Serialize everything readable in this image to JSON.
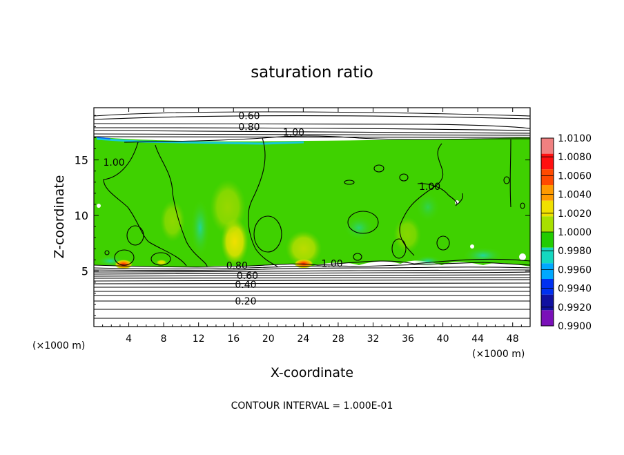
{
  "chart_data": {
    "type": "heatmap",
    "title": "saturation ratio",
    "xlabel": "X-coordinate",
    "ylabel": "Z-coordinate",
    "x_unit_left": "(×1000 m)",
    "x_unit_right": "(×1000 m)",
    "xlim": [
      0,
      50
    ],
    "ylim": [
      0,
      19.7
    ],
    "x_ticks": [
      4,
      8,
      12,
      16,
      20,
      24,
      28,
      32,
      36,
      40,
      44,
      48
    ],
    "y_ticks": [
      5,
      10,
      15
    ],
    "contour_interval_text": "CONTOUR INTERVAL = 1.000E-01",
    "colorbar": {
      "labels": [
        "1.0100",
        "1.0080",
        "1.0060",
        "1.0040",
        "1.0020",
        "1.0000",
        "0.9980",
        "0.9960",
        "0.9940",
        "0.9920",
        "0.9900"
      ],
      "colors": [
        "#f08080",
        "#ff1010",
        "#ff4a00",
        "#ff9a00",
        "#f0e000",
        "#a8e000",
        "#22cc00",
        "#14d8c0",
        "#00a8ff",
        "#0030f0",
        "#1010a0",
        "#7a10b8"
      ]
    },
    "contour_labels": [
      {
        "text": "0.60",
        "x": 17.8,
        "z": 19.0
      },
      {
        "text": "0.80",
        "x": 17.8,
        "z": 18.0
      },
      {
        "text": "1.00",
        "x": 22.9,
        "z": 17.5
      },
      {
        "text": "1.00",
        "x": 2.3,
        "z": 14.8
      },
      {
        "text": "1.00",
        "x": 38.5,
        "z": 12.6
      },
      {
        "text": "1.00",
        "x": 27.3,
        "z": 5.7
      },
      {
        "text": "0.80",
        "x": 16.4,
        "z": 5.5
      },
      {
        "text": "0.60",
        "x": 17.6,
        "z": 4.6
      },
      {
        "text": "0.40",
        "x": 17.4,
        "z": 3.8
      },
      {
        "text": "0.20",
        "x": 17.4,
        "z": 2.3
      }
    ]
  }
}
